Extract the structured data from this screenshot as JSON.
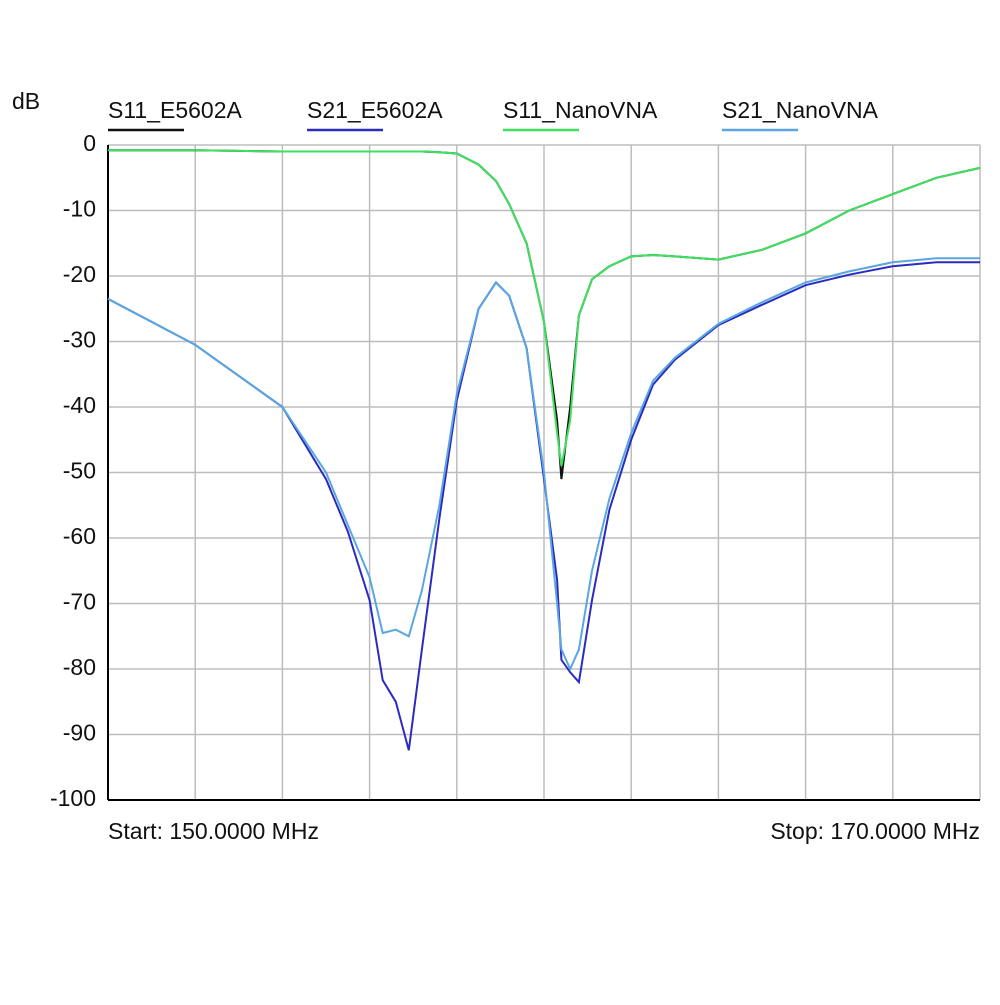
{
  "chart_data": {
    "type": "line",
    "y_label": "dB",
    "start_label": "Start: 150.0000 MHz",
    "stop_label": "Stop: 170.0000 MHz",
    "xlim": [
      150,
      170
    ],
    "xticks": [
      150,
      152,
      154,
      156,
      158,
      160,
      162,
      164,
      166,
      168,
      170
    ],
    "xtick_labels": false,
    "ylim": [
      -100,
      0
    ],
    "yticks": [
      -100,
      -90,
      -80,
      -70,
      -60,
      -50,
      -40,
      -30,
      -20,
      -10,
      0
    ],
    "grid": true,
    "x": [
      150,
      152,
      154,
      155,
      155.5,
      156,
      156.3,
      156.6,
      156.9,
      157.2,
      157.6,
      158,
      158.5,
      158.9,
      159.2,
      159.6,
      160,
      160.3,
      160.4,
      160.6,
      160.8,
      161.1,
      161.5,
      162,
      162.5,
      163,
      164,
      165,
      166,
      167,
      168,
      169,
      170
    ],
    "series": [
      {
        "name": "S11_E5602A",
        "color": "#111111",
        "values": [
          -0.8,
          -0.8,
          -1,
          -1,
          -1,
          -1,
          -1,
          -1,
          -1,
          -1,
          -1.1,
          -1.3,
          -3,
          -5.5,
          -9,
          -15,
          -27,
          -42,
          -51,
          -40,
          -26,
          -20.5,
          -18.5,
          -17,
          -16.8,
          -17,
          -17.5,
          -16,
          -13.5,
          -10,
          -7.5,
          -5,
          -3.5
        ]
      },
      {
        "name": "S21_E5602A",
        "color": "#2b2bc0",
        "values": [
          -23.5,
          -30.5,
          -40,
          -51,
          -59,
          -69.5,
          -81.7,
          -85,
          -92.4,
          -77,
          -57,
          -39,
          -25,
          -21,
          -23,
          -31,
          -51,
          -66.4,
          -78.6,
          -80.5,
          -82,
          -69.5,
          -55.7,
          -45,
          -36.6,
          -32.8,
          -27.5,
          -24.4,
          -21.4,
          -19.8,
          -18.5,
          -17.9,
          -17.9
        ]
      },
      {
        "name": "S11_NanoVNA",
        "color": "#3ee060",
        "values": [
          -0.8,
          -0.8,
          -1,
          -1,
          -1,
          -1,
          -1,
          -1,
          -1,
          -1,
          -1.1,
          -1.3,
          -3,
          -5.5,
          -9,
          -15,
          -27,
          -44,
          -49,
          -42,
          -26,
          -20.5,
          -18.5,
          -17,
          -16.8,
          -17,
          -17.5,
          -16,
          -13.5,
          -10,
          -7.5,
          -5,
          -3.5
        ]
      },
      {
        "name": "S21_NanoVNA",
        "color": "#5aa6e0",
        "values": [
          -23.5,
          -30.5,
          -40,
          -50,
          -58,
          -66,
          -74.5,
          -74,
          -75,
          -68,
          -55,
          -38,
          -25,
          -21,
          -23,
          -31,
          -50,
          -70,
          -77,
          -80,
          -77,
          -65,
          -54,
          -44,
          -36,
          -32.5,
          -27.3,
          -24,
          -21,
          -19.3,
          -17.9,
          -17.3,
          -17.3
        ]
      }
    ]
  }
}
